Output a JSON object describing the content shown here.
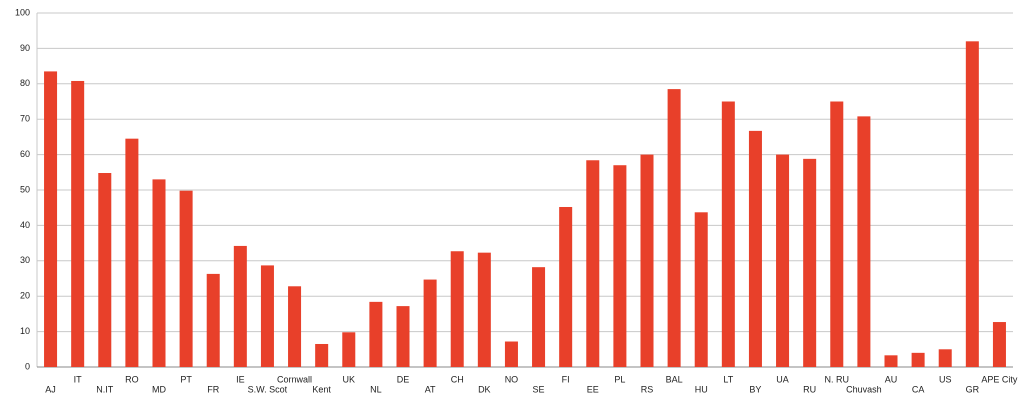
{
  "chart_data": {
    "type": "bar",
    "categories": [
      "AJ",
      "IT",
      "N.IT",
      "RO",
      "MD",
      "PT",
      "FR",
      "IE",
      "S.W. Scot",
      "Cornwall",
      "Kent",
      "UK",
      "NL",
      "DE",
      "AT",
      "CH",
      "DK",
      "NO",
      "SE",
      "FI",
      "EE",
      "PL",
      "RS",
      "BAL",
      "HU",
      "LT",
      "BY",
      "UA",
      "RU",
      "N. RU",
      "Chuvash",
      "AU",
      "CA",
      "US",
      "GR",
      "APE City"
    ],
    "values": [
      83.5,
      80.8,
      54.8,
      64.5,
      53,
      49.8,
      26.3,
      34.2,
      28.7,
      22.8,
      6.5,
      9.8,
      18.4,
      17.2,
      24.7,
      32.7,
      32.3,
      7.2,
      28.2,
      45.2,
      58.4,
      57,
      60,
      78.5,
      43.7,
      75,
      66.7,
      60,
      58.8,
      75,
      70.8,
      3.3,
      4,
      5,
      92,
      12.7
    ],
    "color": "#e8402a",
    "ylim": [
      0,
      100
    ],
    "yticks": [
      0,
      10,
      20,
      30,
      40,
      50,
      60,
      70,
      80,
      90,
      100
    ],
    "grid": true
  }
}
